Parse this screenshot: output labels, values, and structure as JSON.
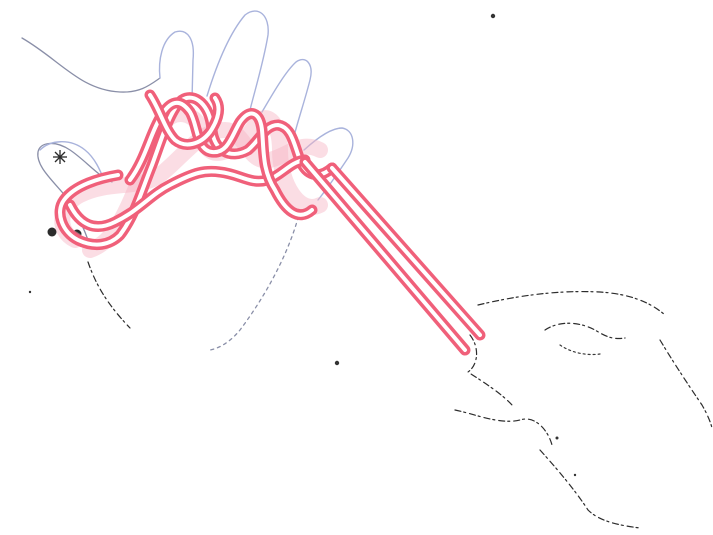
{
  "illustration": {
    "colors": {
      "cord": "#f0607a",
      "cord_highlight": "#ffffff",
      "hand_outline": "#8a8fa8",
      "finger_outline": "#a9b3dc",
      "second_hand_outline": "#2c2c2c",
      "markers": "#2b2b2b"
    },
    "icons": {
      "asterisk": "asterisk-icon",
      "dot": "dot-icon"
    }
  }
}
